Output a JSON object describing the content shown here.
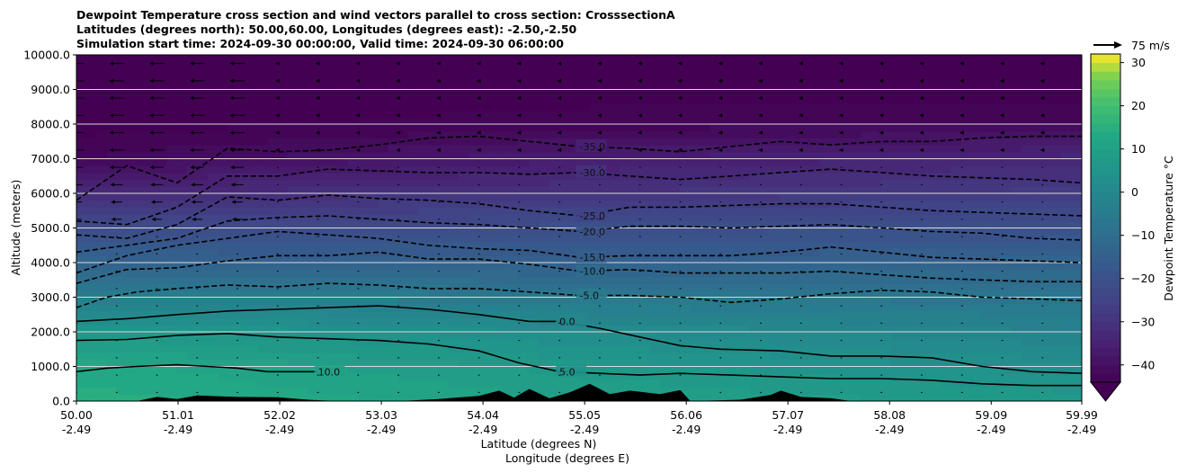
{
  "chart_data": {
    "type": "heatmap",
    "title_lines": [
      "Dewpoint Temperature cross section and wind vectors parallel to cross section: CrosssectionA",
      "Latitudes (degrees north): 50.00,60.00, Longitudes (degrees east): -2.50,-2.50",
      "Simulation start time: 2024-09-30 00:00:00, Valid time: 2024-09-30 06:00:00"
    ],
    "xlabel_lines": [
      "Latitude (degrees N)",
      "Longitude (degrees E)"
    ],
    "ylabel": "Altitude (meters)",
    "xlim": [
      50.0,
      59.99
    ],
    "ylim": [
      0,
      10000
    ],
    "x_ticks": [
      {
        "lat": "50.00",
        "lon": "-2.49",
        "value": 50.0
      },
      {
        "lat": "51.01",
        "lon": "-2.49",
        "value": 51.01
      },
      {
        "lat": "52.02",
        "lon": "-2.49",
        "value": 52.02
      },
      {
        "lat": "53.03",
        "lon": "-2.49",
        "value": 53.03
      },
      {
        "lat": "54.04",
        "lon": "-2.49",
        "value": 54.04
      },
      {
        "lat": "55.05",
        "lon": "-2.49",
        "value": 55.05
      },
      {
        "lat": "56.06",
        "lon": "-2.49",
        "value": 56.06
      },
      {
        "lat": "57.07",
        "lon": "-2.49",
        "value": 57.07
      },
      {
        "lat": "58.08",
        "lon": "-2.49",
        "value": 58.08
      },
      {
        "lat": "59.09",
        "lon": "-2.49",
        "value": 59.09
      },
      {
        "lat": "59.99",
        "lon": "-2.49",
        "value": 59.99
      }
    ],
    "y_ticks": [
      {
        "label": "0.0",
        "value": 0
      },
      {
        "label": "1000.0",
        "value": 1000
      },
      {
        "label": "2000.0",
        "value": 2000
      },
      {
        "label": "3000.0",
        "value": 3000
      },
      {
        "label": "4000.0",
        "value": 4000
      },
      {
        "label": "5000.0",
        "value": 5000
      },
      {
        "label": "6000.0",
        "value": 6000
      },
      {
        "label": "7000.0",
        "value": 7000
      },
      {
        "label": "8000.0",
        "value": 8000
      },
      {
        "label": "9000.0",
        "value": 9000
      },
      {
        "label": "10000.0",
        "value": 10000
      }
    ],
    "grid": "horizontal",
    "colorbar": {
      "label": "Dewpoint Temperature $^\\circ$C",
      "label_display": "Dewpoint Temperature °C",
      "min": -44,
      "max": 32,
      "ticks": [
        {
          "label": "−40",
          "value": -40
        },
        {
          "label": "−30",
          "value": -30
        },
        {
          "label": "−20",
          "value": -20
        },
        {
          "label": "−10",
          "value": -10
        },
        {
          "label": "0",
          "value": 0
        },
        {
          "label": "10",
          "value": 10
        },
        {
          "label": "20",
          "value": 20
        },
        {
          "label": "30",
          "value": 30
        }
      ],
      "colormap": "viridis",
      "extend": "min"
    },
    "wind_reference": {
      "label": "75 m/s",
      "value": 75
    },
    "dewpoint_profile_sample": {
      "altitudes": [
        0,
        1000,
        2000,
        3000,
        4000,
        5000,
        6000,
        7000,
        8000,
        9000,
        10000
      ],
      "values_at_50N": [
        15,
        13,
        7,
        -3,
        -13,
        -22,
        -32,
        -42,
        -45,
        -45,
        -45
      ],
      "values_at_55N": [
        10,
        7,
        2,
        -6,
        -15,
        -21,
        -30,
        -36,
        -43,
        -45,
        -45
      ],
      "values_at_59N": [
        7,
        3,
        -2,
        -7,
        -13,
        -20,
        -27,
        -33,
        -42,
        -45,
        -45
      ]
    },
    "contours": [
      {
        "level": 10,
        "label": "10.0",
        "style": "solid",
        "points": [
          [
            50.0,
            850
          ],
          [
            50.3,
            950
          ],
          [
            50.6,
            1000
          ],
          [
            51.0,
            1050
          ],
          [
            51.3,
            1000
          ],
          [
            51.6,
            950
          ],
          [
            51.9,
            850
          ],
          [
            52.2,
            850
          ],
          [
            52.4,
            850
          ]
        ]
      },
      {
        "level": 5,
        "label": "5.0",
        "style": "solid",
        "points": [
          [
            50.0,
            1750
          ],
          [
            50.5,
            1780
          ],
          [
            51.0,
            1900
          ],
          [
            51.5,
            1950
          ],
          [
            52.0,
            1850
          ],
          [
            52.5,
            1800
          ],
          [
            53.0,
            1750
          ],
          [
            53.5,
            1650
          ],
          [
            54.0,
            1450
          ],
          [
            54.4,
            1100
          ],
          [
            54.8,
            850
          ],
          [
            55.2,
            800
          ],
          [
            55.6,
            750
          ],
          [
            56.0,
            800
          ],
          [
            56.5,
            750
          ],
          [
            57.0,
            700
          ],
          [
            57.5,
            650
          ],
          [
            58.0,
            650
          ],
          [
            58.5,
            600
          ],
          [
            59.0,
            500
          ],
          [
            59.5,
            450
          ],
          [
            59.99,
            450
          ]
        ]
      },
      {
        "level": 0,
        "label": "0.0",
        "style": "solid",
        "points": [
          [
            50.0,
            2300
          ],
          [
            50.5,
            2380
          ],
          [
            51.0,
            2500
          ],
          [
            51.5,
            2600
          ],
          [
            52.0,
            2650
          ],
          [
            52.5,
            2700
          ],
          [
            53.0,
            2750
          ],
          [
            53.5,
            2650
          ],
          [
            54.0,
            2500
          ],
          [
            54.5,
            2300
          ],
          [
            54.8,
            2300
          ],
          [
            55.2,
            2100
          ],
          [
            55.6,
            1850
          ],
          [
            56.0,
            1600
          ],
          [
            56.4,
            1500
          ],
          [
            57.0,
            1450
          ],
          [
            57.5,
            1300
          ],
          [
            58.0,
            1300
          ],
          [
            58.5,
            1250
          ],
          [
            59.0,
            1000
          ],
          [
            59.5,
            850
          ],
          [
            59.99,
            800
          ]
        ]
      },
      {
        "level": -5,
        "label": "-5.0",
        "style": "dashed",
        "points": [
          [
            50.0,
            2700
          ],
          [
            50.3,
            3000
          ],
          [
            50.6,
            3150
          ],
          [
            51.0,
            3250
          ],
          [
            51.5,
            3350
          ],
          [
            52.0,
            3300
          ],
          [
            52.5,
            3400
          ],
          [
            53.0,
            3350
          ],
          [
            53.5,
            3250
          ],
          [
            54.0,
            3250
          ],
          [
            54.5,
            3150
          ],
          [
            55.0,
            3050
          ],
          [
            55.5,
            3050
          ],
          [
            56.0,
            3000
          ],
          [
            56.5,
            2850
          ],
          [
            57.0,
            2950
          ],
          [
            57.5,
            3100
          ],
          [
            58.0,
            3200
          ],
          [
            58.5,
            3150
          ],
          [
            59.0,
            3000
          ],
          [
            59.5,
            2950
          ],
          [
            59.99,
            2900
          ]
        ]
      },
      {
        "level": -10,
        "label": "-10.0",
        "style": "dashed",
        "points": [
          [
            50.0,
            3400
          ],
          [
            50.5,
            3800
          ],
          [
            51.0,
            3850
          ],
          [
            51.5,
            4050
          ],
          [
            52.0,
            4200
          ],
          [
            52.5,
            4200
          ],
          [
            53.0,
            4300
          ],
          [
            53.5,
            4100
          ],
          [
            54.0,
            4100
          ],
          [
            54.5,
            3950
          ],
          [
            55.0,
            3750
          ],
          [
            55.5,
            3800
          ],
          [
            56.0,
            3700
          ],
          [
            56.5,
            3700
          ],
          [
            57.0,
            3700
          ],
          [
            57.5,
            3750
          ],
          [
            58.0,
            3650
          ],
          [
            58.5,
            3550
          ],
          [
            59.0,
            3500
          ],
          [
            59.5,
            3450
          ],
          [
            59.99,
            3450
          ]
        ]
      },
      {
        "level": -15,
        "label": "-15.0",
        "style": "dashed",
        "points": [
          [
            50.0,
            3700
          ],
          [
            50.5,
            4200
          ],
          [
            51.0,
            4500
          ],
          [
            51.5,
            4700
          ],
          [
            52.0,
            4900
          ],
          [
            52.5,
            4800
          ],
          [
            53.0,
            4700
          ],
          [
            53.5,
            4500
          ],
          [
            54.0,
            4400
          ],
          [
            54.5,
            4350
          ],
          [
            55.0,
            4150
          ],
          [
            55.5,
            4200
          ],
          [
            56.0,
            4200
          ],
          [
            56.5,
            4200
          ],
          [
            57.0,
            4300
          ],
          [
            57.5,
            4450
          ],
          [
            58.0,
            4300
          ],
          [
            58.5,
            4150
          ],
          [
            59.0,
            4100
          ],
          [
            59.5,
            4050
          ],
          [
            59.99,
            4000
          ]
        ]
      },
      {
        "level": -20,
        "label": "-20.0",
        "style": "dashed",
        "points": [
          [
            50.0,
            4300
          ],
          [
            50.5,
            4500
          ],
          [
            51.0,
            4700
          ],
          [
            51.5,
            5200
          ],
          [
            52.0,
            5300
          ],
          [
            52.5,
            5350
          ],
          [
            53.0,
            5250
          ],
          [
            53.5,
            5150
          ],
          [
            54.0,
            5100
          ],
          [
            54.5,
            5000
          ],
          [
            55.0,
            4900
          ],
          [
            55.5,
            5050
          ],
          [
            56.0,
            5050
          ],
          [
            56.5,
            5000
          ],
          [
            57.0,
            5050
          ],
          [
            57.5,
            5100
          ],
          [
            58.0,
            5000
          ],
          [
            58.5,
            4900
          ],
          [
            59.0,
            4850
          ],
          [
            59.5,
            4700
          ],
          [
            59.99,
            4650
          ]
        ]
      },
      {
        "level": -25,
        "label": "-25.0",
        "style": "dashed",
        "points": [
          [
            50.0,
            4800
          ],
          [
            50.5,
            4700
          ],
          [
            51.0,
            5100
          ],
          [
            51.5,
            5900
          ],
          [
            52.0,
            5800
          ],
          [
            52.5,
            5950
          ],
          [
            53.0,
            5850
          ],
          [
            53.5,
            5800
          ],
          [
            54.0,
            5700
          ],
          [
            54.5,
            5500
          ],
          [
            55.0,
            5350
          ],
          [
            55.5,
            5600
          ],
          [
            56.0,
            5600
          ],
          [
            56.5,
            5650
          ],
          [
            57.0,
            5700
          ],
          [
            57.5,
            5700
          ],
          [
            58.0,
            5600
          ],
          [
            58.5,
            5500
          ],
          [
            59.0,
            5450
          ],
          [
            59.5,
            5400
          ],
          [
            59.99,
            5350
          ]
        ]
      },
      {
        "level": -30,
        "label": "-30.0",
        "style": "dashed",
        "points": [
          [
            50.0,
            5200
          ],
          [
            50.5,
            5100
          ],
          [
            51.0,
            5600
          ],
          [
            51.5,
            6500
          ],
          [
            52.0,
            6500
          ],
          [
            52.5,
            6700
          ],
          [
            53.0,
            6650
          ],
          [
            53.5,
            6600
          ],
          [
            54.0,
            6600
          ],
          [
            54.5,
            6550
          ],
          [
            55.0,
            6600
          ],
          [
            55.5,
            6500
          ],
          [
            56.0,
            6400
          ],
          [
            56.5,
            6500
          ],
          [
            57.0,
            6600
          ],
          [
            57.5,
            6700
          ],
          [
            58.0,
            6600
          ],
          [
            58.5,
            6500
          ],
          [
            59.0,
            6450
          ],
          [
            59.5,
            6400
          ],
          [
            59.99,
            6300
          ]
        ]
      },
      {
        "level": -35,
        "label": "-35.0",
        "style": "dashed",
        "points": [
          [
            50.0,
            5800
          ],
          [
            50.5,
            6800
          ],
          [
            51.0,
            6300
          ],
          [
            51.5,
            7300
          ],
          [
            52.0,
            7200
          ],
          [
            52.5,
            7250
          ],
          [
            53.0,
            7400
          ],
          [
            53.5,
            7600
          ],
          [
            54.0,
            7650
          ],
          [
            54.5,
            7500
          ],
          [
            55.0,
            7350
          ],
          [
            55.5,
            7300
          ],
          [
            56.0,
            7200
          ],
          [
            56.5,
            7350
          ],
          [
            57.0,
            7500
          ],
          [
            57.5,
            7400
          ],
          [
            58.0,
            7500
          ],
          [
            58.5,
            7500
          ],
          [
            59.0,
            7600
          ],
          [
            59.5,
            7650
          ],
          [
            59.99,
            7650
          ]
        ]
      }
    ]
  }
}
